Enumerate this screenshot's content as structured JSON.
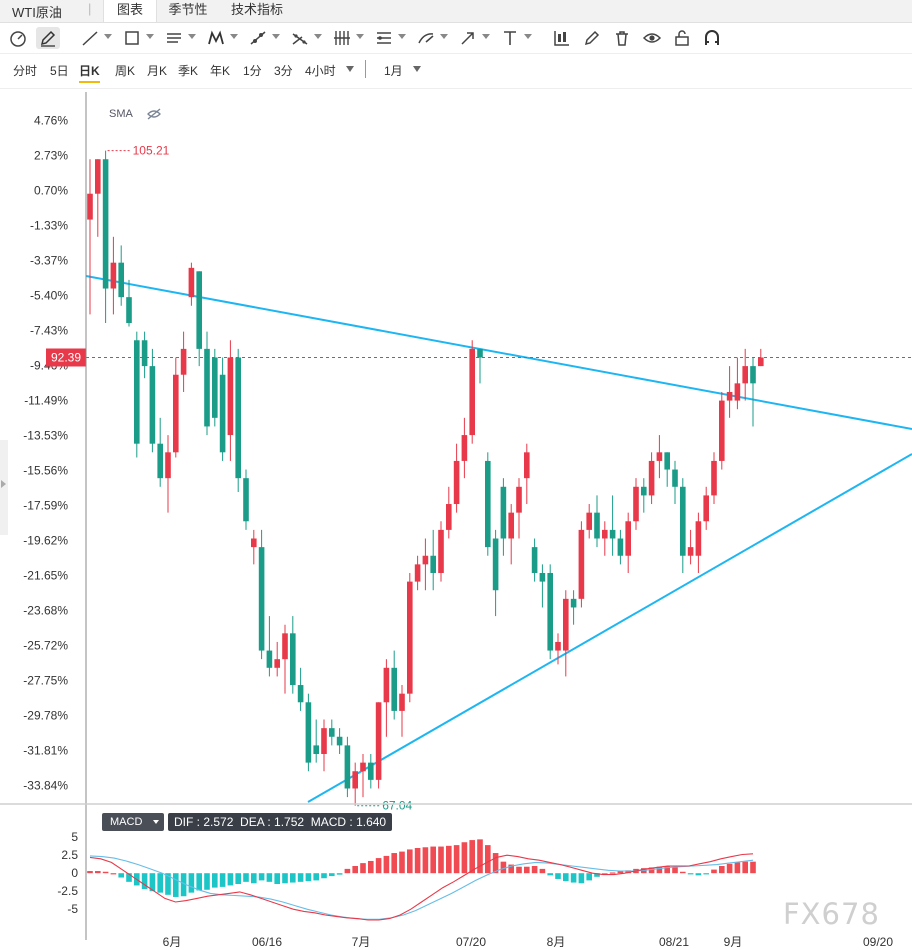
{
  "header": {
    "title": "WTI原油",
    "tabs": [
      {
        "label": "图表",
        "active": true
      },
      {
        "label": "季节性",
        "active": false
      },
      {
        "label": "技术指标",
        "active": false
      }
    ]
  },
  "toolbar": {
    "icons": [
      "cursor-mode-icon",
      "draw-pen-icon",
      "trend-line-icon",
      "rectangle-icon",
      "parallel-channel-icon",
      "pattern-icon",
      "measure-icon",
      "fibonacci-icon",
      "gann-icon",
      "price-range-icon",
      "brush-icon",
      "arrow-icon",
      "text-icon",
      "candle-style-icon",
      "edit-icon",
      "trash-icon",
      "eye-icon",
      "lock-icon",
      "magnet-icon"
    ]
  },
  "periods": {
    "items": [
      "分时",
      "5日",
      "日K",
      "周K",
      "月K",
      "季K",
      "年K",
      "1分",
      "3分",
      "4小时"
    ],
    "active": "日K",
    "range": "1月"
  },
  "indicator": {
    "label": "SMA",
    "current_price": "92.39",
    "high_label": "105.21",
    "low_label": "67.04"
  },
  "macd_panel": {
    "button_label": "MACD",
    "info": "DIF : 2.572  DEA : 1.752  MACD : 1.640"
  },
  "watermark": "FX678",
  "colors": {
    "up": "#e8394a",
    "down": "#1a9c88",
    "trend": "#1db6f2",
    "price_line": "#e8394a",
    "dif": "#e8394a",
    "dea": "#66bde8",
    "hist_up": "#f04a52",
    "hist_down": "#1cc6c6"
  },
  "chart_data": [
    {
      "type": "candlestick",
      "x_ticks": [
        "6月",
        "06/16",
        "7月",
        "07/20",
        "8月",
        "08/21",
        "9月",
        "09/20"
      ],
      "y_ticks": [
        "4.76%",
        "2.73%",
        "0.70%",
        "-1.33%",
        "-3.37%",
        "-5.40%",
        "-7.43%",
        "-9.46%",
        "-11.49%",
        "-13.53%",
        "-15.56%",
        "-17.59%",
        "-19.62%",
        "-21.65%",
        "-23.68%",
        "-25.72%",
        "-27.75%",
        "-29.78%",
        "-31.81%",
        "-33.84%"
      ],
      "y_unit": "percent change",
      "ylim": [
        -34.9,
        6.4
      ],
      "candles": [
        [
          -1.0,
          0.5,
          -6.5,
          2.5
        ],
        [
          0.5,
          2.5,
          -2.0,
          2.5
        ],
        [
          2.5,
          -5.0,
          -7.0,
          3.0
        ],
        [
          -5.0,
          -3.5,
          -6.5,
          -2.0
        ],
        [
          -3.5,
          -5.5,
          -6.0,
          -2.5
        ],
        [
          -5.5,
          -7.0,
          -7.2,
          -4.5
        ],
        [
          -8.0,
          -14.0,
          -14.8,
          -7.5
        ],
        [
          -8.0,
          -9.5,
          -10.2,
          -7.5
        ],
        [
          -9.5,
          -14.0,
          -14.5,
          -8.5
        ],
        [
          -14.0,
          -16.0,
          -16.5,
          -12.5
        ],
        [
          -16.0,
          -14.5,
          -18.0,
          -13.5
        ],
        [
          -14.5,
          -10.0,
          -14.8,
          -9.0
        ],
        [
          -10.0,
          -8.5,
          -11.0,
          -7.5
        ],
        [
          -5.5,
          -3.8,
          -6.0,
          -3.5
        ],
        [
          -4.0,
          -8.5,
          -9.5,
          -4.0
        ],
        [
          -8.5,
          -13.0,
          -13.5,
          -7.5
        ],
        [
          -9.0,
          -12.5,
          -13.0,
          -8.5
        ],
        [
          -10.0,
          -14.5,
          -15.0,
          -9.0
        ],
        [
          -13.5,
          -9.0,
          -15.0,
          -8.0
        ],
        [
          -9.0,
          -16.0,
          -16.8,
          -8.5
        ],
        [
          -16.0,
          -18.5,
          -19.0,
          -15.5
        ],
        [
          -20.0,
          -19.5,
          -21.0,
          -19.0
        ],
        [
          -20.0,
          -26.0,
          -26.5,
          -19.0
        ],
        [
          -26.0,
          -27.0,
          -27.5,
          -24.0
        ],
        [
          -27.0,
          -26.5,
          -27.5,
          -25.5
        ],
        [
          -26.5,
          -25.0,
          -28.5,
          -24.5
        ],
        [
          -25.0,
          -28.0,
          -28.5,
          -24.0
        ],
        [
          -28.0,
          -29.0,
          -29.5,
          -27.0
        ],
        [
          -29.0,
          -32.5,
          -33.0,
          -28.5
        ],
        [
          -31.5,
          -32.0,
          -32.5,
          -30.0
        ],
        [
          -32.0,
          -30.5,
          -33.0,
          -30.0
        ],
        [
          -30.5,
          -31.0,
          -31.5,
          -30.0
        ],
        [
          -31.0,
          -31.5,
          -32.0,
          -30.5
        ],
        [
          -31.5,
          -34.0,
          -34.5,
          -31.0
        ],
        [
          -34.0,
          -33.0,
          -35.0,
          -32.5
        ],
        [
          -33.0,
          -32.5,
          -34.5,
          -32.0
        ],
        [
          -32.5,
          -33.5,
          -34.0,
          -32.0
        ],
        [
          -33.5,
          -29.0,
          -34.0,
          -29.0
        ],
        [
          -29.0,
          -27.0,
          -31.0,
          -26.5
        ],
        [
          -27.0,
          -29.5,
          -30.0,
          -26.0
        ],
        [
          -29.5,
          -28.5,
          -31.0,
          -28.0
        ],
        [
          -28.5,
          -22.0,
          -29.0,
          -21.5
        ],
        [
          -22.0,
          -21.0,
          -22.5,
          -20.5
        ],
        [
          -21.0,
          -20.5,
          -22.5,
          -19.5
        ],
        [
          -20.5,
          -21.5,
          -22.5,
          -19.0
        ],
        [
          -21.5,
          -19.0,
          -22.0,
          -18.5
        ],
        [
          -19.0,
          -17.5,
          -19.5,
          -16.5
        ],
        [
          -17.5,
          -15.0,
          -18.0,
          -14.0
        ],
        [
          -15.0,
          -13.5,
          -16.0,
          -12.5
        ],
        [
          -13.5,
          -8.5,
          -14.0,
          -8.0
        ],
        [
          -8.5,
          -9.0,
          -10.5,
          -8.5
        ],
        [
          -15.0,
          -20.0,
          -20.5,
          -14.5
        ],
        [
          -19.5,
          -22.5,
          -24.0,
          -19.0
        ],
        [
          -16.5,
          -19.5,
          -20.5,
          -16.0
        ],
        [
          -19.5,
          -18.0,
          -21.0,
          -17.5
        ],
        [
          -18.0,
          -16.5,
          -19.5,
          -16.0
        ],
        [
          -16.0,
          -14.5,
          -17.5,
          -14.0
        ],
        [
          -20.0,
          -21.5,
          -22.0,
          -19.5
        ],
        [
          -21.5,
          -22.0,
          -23.5,
          -21.0
        ],
        [
          -21.5,
          -26.0,
          -26.5,
          -21.0
        ],
        [
          -26.0,
          -25.5,
          -26.8,
          -25.0
        ],
        [
          -26.0,
          -23.0,
          -27.5,
          -22.5
        ],
        [
          -23.0,
          -23.5,
          -24.5,
          -22.5
        ],
        [
          -23.0,
          -19.0,
          -23.5,
          -18.5
        ],
        [
          -19.0,
          -18.0,
          -19.5,
          -17.5
        ],
        [
          -18.0,
          -19.5,
          -20.0,
          -17.0
        ],
        [
          -19.5,
          -19.0,
          -20.5,
          -18.5
        ],
        [
          -19.0,
          -19.5,
          -20.5,
          -17.0
        ],
        [
          -19.5,
          -20.5,
          -21.0,
          -19.0
        ],
        [
          -20.5,
          -18.5,
          -21.5,
          -18.0
        ],
        [
          -18.5,
          -16.5,
          -19.0,
          -16.0
        ],
        [
          -16.5,
          -17.0,
          -18.0,
          -16.0
        ],
        [
          -17.0,
          -15.0,
          -17.5,
          -14.5
        ],
        [
          -15.0,
          -14.5,
          -16.0,
          -13.5
        ],
        [
          -14.5,
          -15.5,
          -16.5,
          -14.5
        ],
        [
          -15.5,
          -16.5,
          -17.5,
          -15.0
        ],
        [
          -16.5,
          -20.5,
          -21.5,
          -16.0
        ],
        [
          -20.5,
          -20.0,
          -21.0,
          -19.0
        ],
        [
          -20.5,
          -18.5,
          -21.5,
          -18.0
        ],
        [
          -18.5,
          -17.0,
          -19.0,
          -16.5
        ],
        [
          -17.0,
          -15.0,
          -17.5,
          -14.5
        ],
        [
          -15.0,
          -11.5,
          -15.5,
          -11.0
        ],
        [
          -11.5,
          -11.0,
          -12.5,
          -9.5
        ],
        [
          -11.5,
          -10.5,
          -12.0,
          -9.0
        ],
        [
          -10.5,
          -9.5,
          -11.5,
          -8.5
        ],
        [
          -9.5,
          -10.5,
          -13.0,
          -9.0
        ],
        [
          -9.5,
          -9.0,
          -9.5,
          -8.5
        ]
      ],
      "annotations": [
        {
          "label": "105.21",
          "kind": "high"
        },
        {
          "label": "67.04",
          "kind": "low"
        },
        {
          "label": "92.39",
          "kind": "last-price"
        }
      ],
      "trend_lines": [
        "descending resistance line",
        "ascending support line"
      ],
      "legend": "SMA",
      "grid": false
    },
    {
      "type": "bar",
      "name": "MACD",
      "y_ticks": [
        "5",
        "2.5",
        "0",
        "-2.5",
        "-5"
      ],
      "ylim": [
        -6.5,
        6
      ],
      "histogram": [
        0.3,
        0.3,
        0.2,
        0.0,
        -0.6,
        -1.2,
        -1.7,
        -2.2,
        -2.5,
        -2.7,
        -3.0,
        -3.3,
        -3.2,
        -2.7,
        -2.4,
        -2.3,
        -2.0,
        -1.9,
        -1.7,
        -1.5,
        -1.2,
        -1.4,
        -1.0,
        -1.2,
        -1.5,
        -1.4,
        -1.3,
        -1.2,
        -1.1,
        -1.0,
        -0.7,
        -0.4,
        -0.2,
        0.6,
        1.0,
        1.4,
        1.7,
        2.1,
        2.4,
        2.8,
        3.0,
        3.3,
        3.5,
        3.6,
        3.7,
        3.7,
        3.8,
        3.9,
        4.3,
        4.6,
        4.7,
        3.9,
        2.8,
        1.6,
        1.2,
        0.9,
        0.9,
        1.0,
        0.6,
        -0.3,
        -0.8,
        -1.1,
        -1.3,
        -1.4,
        -1.0,
        -0.5,
        -0.2,
        0.1,
        0.3,
        0.4,
        0.6,
        0.7,
        0.8,
        0.9,
        1.0,
        0.8,
        0.2,
        -0.1,
        -0.3,
        -0.1,
        0.5,
        1.0,
        1.3,
        1.5,
        1.6,
        1.6
      ],
      "dif": [
        2.2,
        2.0,
        1.5,
        0.5,
        -0.5,
        -1.5,
        -2.5,
        -3.5,
        -4.0,
        -3.8,
        -3.5,
        -3.2,
        -3.0,
        -2.8,
        -2.6,
        -3.0,
        -3.5,
        -4.0,
        -4.5,
        -5.0,
        -5.3,
        -5.5,
        -5.8,
        -6.0,
        -6.2,
        -6.3,
        -6.5,
        -6.5,
        -6.3,
        -5.8,
        -5.0,
        -4.0,
        -3.0,
        -2.0,
        -1.2,
        -0.3,
        0.6,
        1.4,
        2.2,
        2.5,
        2.3,
        2.0,
        1.8,
        1.5,
        1.2,
        0.8,
        0.4,
        0.0,
        -0.2,
        -0.2,
        0.0,
        0.3,
        0.6,
        0.8,
        1.0,
        1.0,
        1.0,
        1.3,
        1.6,
        2.0,
        2.3,
        2.6,
        2.7
      ],
      "dea": [
        2.4,
        2.3,
        2.1,
        1.7,
        1.2,
        0.6,
        0.0,
        -0.8,
        -1.6,
        -2.3,
        -2.8,
        -3.0,
        -3.1,
        -3.2,
        -3.3,
        -3.6,
        -4.0,
        -4.5,
        -5.0,
        -5.4,
        -5.8,
        -6.1,
        -6.3,
        -6.4,
        -6.4,
        -6.2,
        -5.8,
        -5.2,
        -4.4,
        -3.6,
        -2.8,
        -1.9,
        -1.0,
        -0.2,
        0.5,
        1.0,
        1.3,
        1.5,
        1.4,
        1.2,
        1.0,
        0.8,
        0.6,
        0.4,
        0.3,
        0.3,
        0.4,
        0.6,
        0.8,
        0.9,
        1.0,
        1.1,
        1.2,
        1.4,
        1.6,
        1.8
      ]
    }
  ]
}
